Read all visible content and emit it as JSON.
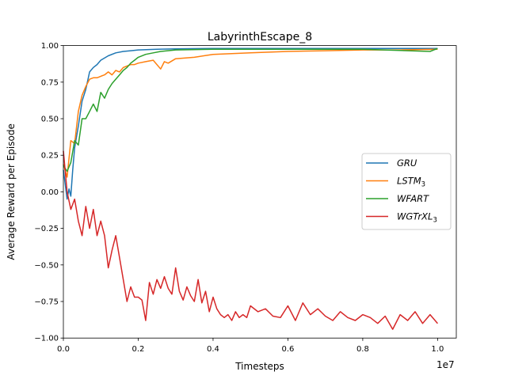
{
  "chart_data": {
    "type": "line",
    "title": "LabyrinthEscape_8",
    "xlabel": "Timesteps",
    "ylabel": "Average Reward per Episode",
    "x_offset_label": "1e7",
    "xlim": [
      0,
      10500000
    ],
    "ylim": [
      -1.0,
      1.0
    ],
    "xticks": [
      0,
      2000000,
      4000000,
      6000000,
      8000000,
      10000000
    ],
    "xtick_labels": [
      "0.0",
      "0.2",
      "0.4",
      "0.6",
      "0.8",
      "1.0"
    ],
    "yticks": [
      -1.0,
      -0.75,
      -0.5,
      -0.25,
      0.0,
      0.25,
      0.5,
      0.75,
      1.0
    ],
    "ytick_labels": [
      "−1.00",
      "−0.75",
      "−0.50",
      "−0.25",
      "0.00",
      "0.25",
      "0.50",
      "0.75",
      "1.00"
    ],
    "grid": false,
    "legend_position": "center-right",
    "series": [
      {
        "name": "GRU",
        "legend_base": "GRU",
        "legend_sub": "",
        "color": "#1f77b4",
        "x": [
          0,
          100000,
          150000,
          200000,
          250000,
          300000,
          400000,
          500000,
          600000,
          700000,
          800000,
          900000,
          1000000,
          1200000,
          1400000,
          1600000,
          1800000,
          2000000,
          2500000,
          3000000,
          4000000,
          5000000,
          6000000,
          8000000,
          10000000
        ],
        "y": [
          0.15,
          -0.05,
          0.02,
          -0.03,
          0.15,
          0.3,
          0.45,
          0.62,
          0.7,
          0.82,
          0.85,
          0.87,
          0.9,
          0.93,
          0.95,
          0.96,
          0.965,
          0.97,
          0.975,
          0.978,
          0.98,
          0.98,
          0.98,
          0.98,
          0.98
        ]
      },
      {
        "name": "LSTM3",
        "legend_base": "LSTM",
        "legend_sub": "3",
        "color": "#ff7f0e",
        "x": [
          0,
          100000,
          200000,
          300000,
          400000,
          500000,
          600000,
          700000,
          800000,
          900000,
          1000000,
          1100000,
          1200000,
          1300000,
          1400000,
          1500000,
          1600000,
          1700000,
          1800000,
          1900000,
          2000000,
          2200000,
          2400000,
          2600000,
          2700000,
          2800000,
          3000000,
          3500000,
          4000000,
          5000000,
          6000000,
          7000000,
          8000000,
          9000000,
          10000000
        ],
        "y": [
          0.19,
          0.1,
          0.35,
          0.33,
          0.55,
          0.66,
          0.72,
          0.77,
          0.78,
          0.78,
          0.79,
          0.8,
          0.82,
          0.8,
          0.83,
          0.82,
          0.85,
          0.86,
          0.87,
          0.87,
          0.88,
          0.89,
          0.9,
          0.84,
          0.89,
          0.88,
          0.91,
          0.92,
          0.94,
          0.95,
          0.96,
          0.965,
          0.97,
          0.97,
          0.975
        ]
      },
      {
        "name": "WFART",
        "legend_base": "WFART",
        "legend_sub": "",
        "color": "#2ca02c",
        "x": [
          0,
          100000,
          200000,
          300000,
          400000,
          500000,
          600000,
          700000,
          800000,
          900000,
          1000000,
          1100000,
          1200000,
          1300000,
          1400000,
          1500000,
          1600000,
          1700000,
          1800000,
          1900000,
          2000000,
          2200000,
          2400000,
          2600000,
          3000000,
          4000000,
          6000000,
          8000000,
          9800000,
          9900000,
          10000000
        ],
        "y": [
          0.18,
          0.14,
          0.2,
          0.35,
          0.32,
          0.5,
          0.5,
          0.55,
          0.6,
          0.55,
          0.68,
          0.64,
          0.7,
          0.74,
          0.77,
          0.8,
          0.83,
          0.85,
          0.88,
          0.9,
          0.92,
          0.94,
          0.95,
          0.96,
          0.97,
          0.975,
          0.975,
          0.975,
          0.96,
          0.97,
          0.98
        ]
      },
      {
        "name": "WGTrXL3",
        "legend_base": "WGTrXL",
        "legend_sub": "3",
        "color": "#d62728",
        "x": [
          0,
          100000,
          200000,
          300000,
          400000,
          500000,
          600000,
          700000,
          800000,
          900000,
          1000000,
          1100000,
          1200000,
          1300000,
          1400000,
          1500000,
          1600000,
          1700000,
          1800000,
          1900000,
          2000000,
          2100000,
          2200000,
          2300000,
          2400000,
          2500000,
          2600000,
          2700000,
          2800000,
          2900000,
          3000000,
          3100000,
          3200000,
          3300000,
          3400000,
          3500000,
          3600000,
          3700000,
          3800000,
          3900000,
          4000000,
          4100000,
          4200000,
          4300000,
          4400000,
          4500000,
          4600000,
          4700000,
          4800000,
          4900000,
          5000000,
          5200000,
          5400000,
          5600000,
          5800000,
          6000000,
          6200000,
          6400000,
          6600000,
          6800000,
          7000000,
          7200000,
          7400000,
          7600000,
          7800000,
          8000000,
          8200000,
          8400000,
          8600000,
          8800000,
          9000000,
          9200000,
          9400000,
          9600000,
          9800000,
          10000000
        ],
        "y": [
          0.28,
          0.0,
          -0.12,
          -0.05,
          -0.2,
          -0.3,
          -0.1,
          -0.25,
          -0.12,
          -0.3,
          -0.2,
          -0.3,
          -0.52,
          -0.4,
          -0.3,
          -0.45,
          -0.6,
          -0.75,
          -0.65,
          -0.72,
          -0.72,
          -0.74,
          -0.88,
          -0.62,
          -0.7,
          -0.6,
          -0.66,
          -0.58,
          -0.66,
          -0.7,
          -0.52,
          -0.68,
          -0.74,
          -0.65,
          -0.71,
          -0.75,
          -0.6,
          -0.76,
          -0.68,
          -0.82,
          -0.72,
          -0.8,
          -0.84,
          -0.86,
          -0.84,
          -0.88,
          -0.82,
          -0.86,
          -0.84,
          -0.86,
          -0.78,
          -0.82,
          -0.8,
          -0.85,
          -0.86,
          -0.78,
          -0.88,
          -0.76,
          -0.84,
          -0.8,
          -0.85,
          -0.88,
          -0.82,
          -0.86,
          -0.88,
          -0.84,
          -0.86,
          -0.9,
          -0.85,
          -0.94,
          -0.84,
          -0.88,
          -0.82,
          -0.9,
          -0.84,
          -0.9
        ]
      }
    ]
  }
}
